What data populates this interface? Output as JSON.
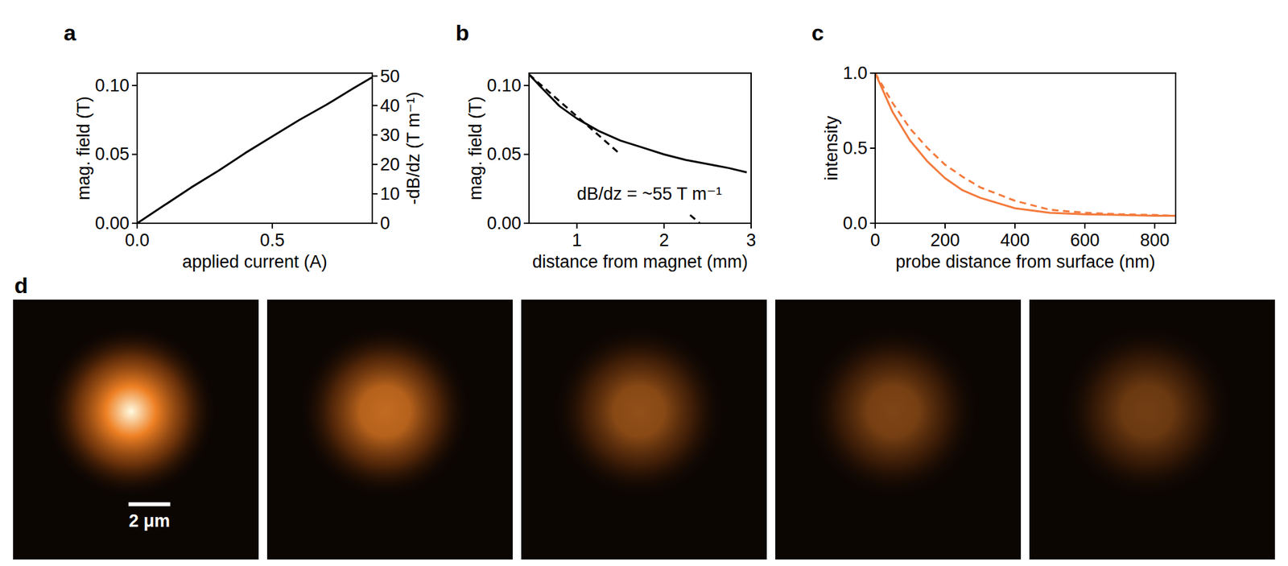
{
  "chart_data": [
    {
      "type": "line",
      "label": "a",
      "x_label": "applied current (A)",
      "y_label": "mag. field (T)",
      "y2_label": "-dB/dz (T m⁻¹)",
      "xlim": [
        0,
        0.87
      ],
      "xticks": [
        {
          "value": 0,
          "label": "0.0"
        },
        0.5
      ],
      "ylim": [
        0,
        0.109
      ],
      "yticks": [
        {
          "value": 0,
          "label": "0.00"
        },
        0.05,
        {
          "value": 0.1,
          "label": "0.10"
        }
      ],
      "y2lim": [
        0,
        51
      ],
      "y2ticks": [
        0,
        10,
        20,
        30,
        40,
        50
      ],
      "series": [
        {
          "color": "#000000",
          "line_style": "solid",
          "x": [
            0,
            0.1,
            0.2,
            0.3,
            0.4,
            0.5,
            0.6,
            0.7,
            0.8,
            0.87
          ],
          "values": [
            0,
            0.013,
            0.026,
            0.038,
            0.051,
            0.063,
            0.075,
            0.086,
            0.098,
            0.106
          ]
        }
      ]
    },
    {
      "type": "line",
      "label": "b",
      "x_label": "distance from magnet (mm)",
      "y_label": "mag. field (T)",
      "xlim": [
        0.45,
        3.0
      ],
      "xticks": [
        1,
        2,
        3
      ],
      "ylim": [
        0,
        0.109
      ],
      "yticks": [
        {
          "value": 0,
          "label": "0.00"
        },
        0.05,
        {
          "value": 0.1,
          "label": "0.10"
        }
      ],
      "annotations": [
        {
          "text": "dB/dz = ~55 T m⁻¹",
          "x": 1.0,
          "y": 0.017
        }
      ],
      "series": [
        {
          "color": "#000000",
          "line_style": "solid",
          "x": [
            0.45,
            0.6,
            0.8,
            1.0,
            1.25,
            1.5,
            1.75,
            2.0,
            2.25,
            2.5,
            2.75,
            2.95
          ],
          "values": [
            0.108,
            0.098,
            0.085,
            0.076,
            0.067,
            0.06,
            0.055,
            0.05,
            0.046,
            0.043,
            0.04,
            0.037
          ]
        },
        {
          "color": "#000000",
          "line_style": "dashed",
          "x": [
            0.45,
            1.5,
            2.0,
            2.3,
            2.41
          ],
          "values": [
            0.108,
            0.05,
            null,
            0.006,
            0
          ]
        }
      ]
    },
    {
      "type": "line",
      "label": "c",
      "x_label": "probe distance from surface (nm)",
      "y_label": "intensity",
      "xlim": [
        0,
        860
      ],
      "xticks": [
        0,
        200,
        400,
        600,
        800
      ],
      "ylim": [
        0,
        1
      ],
      "yticks": [
        {
          "value": 0,
          "label": "0.0"
        },
        0.5,
        {
          "value": 1,
          "label": "1.0"
        }
      ],
      "series": [
        {
          "color": "#f47a3c",
          "line_style": "solid",
          "x": [
            0,
            50,
            100,
            150,
            200,
            250,
            300,
            400,
            500,
            600,
            700,
            800,
            860
          ],
          "values": [
            1.0,
            0.74,
            0.55,
            0.41,
            0.3,
            0.22,
            0.17,
            0.1,
            0.07,
            0.06,
            0.055,
            0.05,
            0.05
          ]
        },
        {
          "color": "#f47a3c",
          "line_style": "dashed",
          "x": [
            0,
            50,
            100,
            150,
            200,
            250,
            300,
            400,
            500,
            600,
            700,
            800,
            860
          ],
          "values": [
            1.0,
            0.8,
            0.63,
            0.5,
            0.39,
            0.31,
            0.24,
            0.15,
            0.09,
            0.07,
            0.06,
            0.055,
            0.05
          ]
        }
      ]
    }
  ],
  "panel_d": {
    "label": "d",
    "scale_bar": "2 μm",
    "images": [
      {
        "intensity": 1.0
      },
      {
        "intensity": 0.75
      },
      {
        "intensity": 0.55
      },
      {
        "intensity": 0.47
      },
      {
        "intensity": 0.42
      }
    ]
  }
}
